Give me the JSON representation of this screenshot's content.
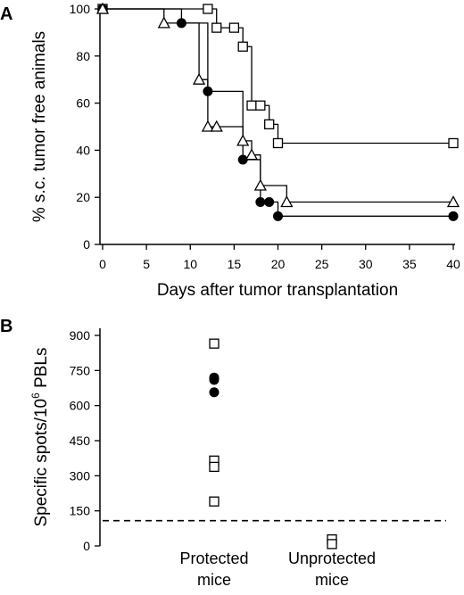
{
  "chart_data": [
    {
      "panel": "A",
      "type": "line",
      "xlabel": "Days after tumor transplantation",
      "ylabel": "% s.c. tumor free animals",
      "xlim": [
        0,
        40
      ],
      "ylim": [
        0,
        100
      ],
      "xticks": [
        0,
        5,
        10,
        15,
        20,
        25,
        30,
        35,
        40
      ],
      "yticks": [
        0,
        20,
        40,
        60,
        80,
        100
      ],
      "grid": false,
      "step": true,
      "series": [
        {
          "marker": "open-square",
          "x": [
            0,
            12,
            13,
            15,
            16,
            17,
            18,
            19,
            20,
            40
          ],
          "y": [
            100,
            100,
            92,
            92,
            84,
            59,
            59,
            51,
            43,
            43
          ]
        },
        {
          "marker": "filled-circle",
          "x": [
            0,
            9,
            12,
            16,
            18,
            19,
            20,
            40
          ],
          "y": [
            100,
            94,
            65,
            36,
            18,
            18,
            12,
            12
          ]
        },
        {
          "marker": "open-triangle",
          "x": [
            0,
            7,
            11,
            12,
            13,
            16,
            17,
            18,
            21,
            40
          ],
          "y": [
            100,
            94,
            70,
            50,
            50,
            44,
            38,
            25,
            18,
            18
          ]
        }
      ]
    },
    {
      "panel": "B",
      "type": "scatter",
      "ylabel_main": "Specific spots/10",
      "ylabel_sup": "6",
      "ylabel_tail": " PBLs",
      "categories": [
        "Protected mice",
        "Unprotected mice"
      ],
      "category_lines": [
        [
          "Protected",
          "mice"
        ],
        [
          "Unprotected",
          "mice"
        ]
      ],
      "ylim": [
        0,
        900
      ],
      "yticks": [
        0,
        150,
        300,
        450,
        600,
        750,
        900
      ],
      "threshold": 108,
      "points": [
        {
          "category": 0,
          "y": 865,
          "marker": "open-square"
        },
        {
          "category": 0,
          "y": 365,
          "marker": "open-square"
        },
        {
          "category": 0,
          "y": 338,
          "marker": "open-square"
        },
        {
          "category": 0,
          "y": 190,
          "marker": "open-square"
        },
        {
          "category": 0,
          "y": 720,
          "marker": "filled-circle"
        },
        {
          "category": 0,
          "y": 710,
          "marker": "filled-circle"
        },
        {
          "category": 0,
          "y": 657,
          "marker": "filled-circle"
        },
        {
          "category": 1,
          "y": 28,
          "marker": "open-square"
        },
        {
          "category": 1,
          "y": 8,
          "marker": "open-square"
        }
      ]
    }
  ],
  "panel_labels": {
    "a": "A",
    "b": "B"
  }
}
